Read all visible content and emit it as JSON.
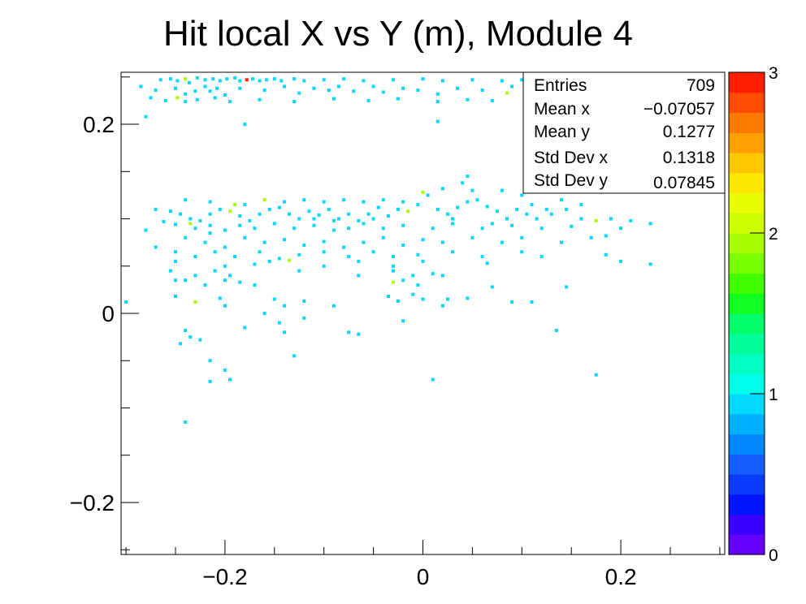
{
  "chart_data": {
    "type": "heatmap",
    "title": "Hit local X vs Y (m), Module 4",
    "xlabel": "",
    "ylabel": "",
    "xlim": [
      -0.305,
      0.305
    ],
    "ylim": [
      -0.255,
      0.255
    ],
    "zlim": [
      0,
      3
    ],
    "x_ticks": [
      -0.2,
      0,
      0.2
    ],
    "x_tick_labels": [
      "−0.2",
      "0",
      "0.2"
    ],
    "y_ticks": [
      -0.2,
      0,
      0.2
    ],
    "y_tick_labels": [
      "−0.2",
      "0",
      "0.2"
    ],
    "z_ticks": [
      0,
      1,
      2,
      3
    ],
    "z_tick_labels": [
      "0",
      "1",
      "2",
      "3"
    ],
    "palette": [
      "#6400ff",
      "#3a00ff",
      "#0014ff",
      "#0a3cff",
      "#1460ff",
      "#0088ff",
      "#00b0ff",
      "#00d8ff",
      "#00ffe8",
      "#00ffc0",
      "#00ff9a",
      "#00ff68",
      "#10ff20",
      "#40ff00",
      "#78ff00",
      "#a8ff00",
      "#ccff00",
      "#e8ff00",
      "#ffe800",
      "#ffc800",
      "#ffa000",
      "#ff7a00",
      "#ff4c00",
      "#ff1e00"
    ],
    "points": [
      [
        -0.265,
        0.247,
        1
      ],
      [
        -0.255,
        0.248,
        1
      ],
      [
        -0.248,
        0.246,
        1
      ],
      [
        -0.24,
        0.248,
        2
      ],
      [
        -0.236,
        0.244,
        1
      ],
      [
        -0.228,
        0.249,
        1
      ],
      [
        -0.22,
        0.247,
        1
      ],
      [
        -0.212,
        0.248,
        1
      ],
      [
        -0.205,
        0.246,
        1
      ],
      [
        -0.198,
        0.248,
        1
      ],
      [
        -0.19,
        0.249,
        1
      ],
      [
        -0.185,
        0.246,
        1
      ],
      [
        -0.178,
        0.247,
        3
      ],
      [
        -0.172,
        0.248,
        1
      ],
      [
        -0.165,
        0.246,
        1
      ],
      [
        -0.158,
        0.247,
        1
      ],
      [
        -0.15,
        0.248,
        1
      ],
      [
        -0.143,
        0.246,
        1
      ],
      [
        -0.13,
        0.248,
        1
      ],
      [
        -0.12,
        0.246,
        1
      ],
      [
        -0.1,
        0.247,
        1
      ],
      [
        -0.08,
        0.248,
        1
      ],
      [
        -0.06,
        0.246,
        1
      ],
      [
        -0.03,
        0.247,
        1
      ],
      [
        0.0,
        0.248,
        1
      ],
      [
        0.02,
        0.246,
        1
      ],
      [
        0.05,
        0.247,
        1
      ],
      [
        0.08,
        0.246,
        1
      ],
      [
        0.1,
        0.247,
        1
      ],
      [
        -0.285,
        0.24,
        1
      ],
      [
        -0.27,
        0.236,
        1
      ],
      [
        -0.25,
        0.238,
        1
      ],
      [
        -0.24,
        0.232,
        1
      ],
      [
        -0.23,
        0.235,
        1
      ],
      [
        -0.22,
        0.24,
        1
      ],
      [
        -0.215,
        0.235,
        1
      ],
      [
        -0.208,
        0.238,
        1
      ],
      [
        -0.2,
        0.231,
        1
      ],
      [
        -0.185,
        0.238,
        1
      ],
      [
        -0.16,
        0.236,
        1
      ],
      [
        -0.14,
        0.24,
        1
      ],
      [
        -0.125,
        0.233,
        1
      ],
      [
        -0.11,
        0.238,
        1
      ],
      [
        -0.095,
        0.236,
        1
      ],
      [
        -0.085,
        0.24,
        1
      ],
      [
        -0.07,
        0.235,
        1
      ],
      [
        -0.05,
        0.24,
        1
      ],
      [
        -0.04,
        0.234,
        1
      ],
      [
        -0.02,
        0.238,
        1
      ],
      [
        -0.005,
        0.236,
        1
      ],
      [
        0.015,
        0.232,
        1
      ],
      [
        0.035,
        0.238,
        1
      ],
      [
        0.06,
        0.236,
        1
      ],
      [
        0.085,
        0.233,
        2
      ],
      [
        0.09,
        0.24,
        1
      ],
      [
        -0.275,
        0.228,
        1
      ],
      [
        -0.26,
        0.225,
        1
      ],
      [
        -0.248,
        0.228,
        2
      ],
      [
        -0.24,
        0.224,
        1
      ],
      [
        -0.228,
        0.226,
        1
      ],
      [
        -0.21,
        0.228,
        1
      ],
      [
        -0.195,
        0.224,
        1
      ],
      [
        -0.165,
        0.226,
        1
      ],
      [
        -0.13,
        0.224,
        1
      ],
      [
        -0.09,
        0.227,
        1
      ],
      [
        -0.055,
        0.225,
        1
      ],
      [
        -0.025,
        0.227,
        1
      ],
      [
        0.015,
        0.224,
        1
      ],
      [
        0.045,
        0.226,
        1
      ],
      [
        0.07,
        0.225,
        1
      ],
      [
        -0.28,
        0.208,
        1
      ],
      [
        -0.18,
        0.2,
        1
      ],
      [
        0.015,
        0.203,
        1
      ],
      [
        -0.27,
        0.11,
        1
      ],
      [
        -0.255,
        0.108,
        1
      ],
      [
        -0.245,
        0.105,
        1
      ],
      [
        -0.235,
        0.1,
        1
      ],
      [
        -0.225,
        0.098,
        1
      ],
      [
        -0.215,
        0.105,
        1
      ],
      [
        -0.205,
        0.11,
        1
      ],
      [
        -0.195,
        0.108,
        2
      ],
      [
        -0.185,
        0.103,
        1
      ],
      [
        -0.175,
        0.098,
        1
      ],
      [
        -0.165,
        0.105,
        1
      ],
      [
        -0.155,
        0.11,
        1
      ],
      [
        -0.145,
        0.112,
        1
      ],
      [
        -0.135,
        0.105,
        1
      ],
      [
        -0.125,
        0.1,
        1
      ],
      [
        -0.115,
        0.108,
        1
      ],
      [
        -0.105,
        0.104,
        1
      ],
      [
        -0.095,
        0.11,
        1
      ],
      [
        -0.085,
        0.1,
        1
      ],
      [
        -0.075,
        0.105,
        1
      ],
      [
        -0.065,
        0.098,
        1
      ],
      [
        -0.055,
        0.105,
        1
      ],
      [
        -0.045,
        0.112,
        1
      ],
      [
        -0.035,
        0.103,
        1
      ],
      [
        -0.025,
        0.11,
        1
      ],
      [
        -0.015,
        0.108,
        2
      ],
      [
        -0.005,
        0.115,
        1
      ],
      [
        0.005,
        0.125,
        1
      ],
      [
        0.015,
        0.11,
        1
      ],
      [
        0.025,
        0.105,
        1
      ],
      [
        0.035,
        0.112,
        1
      ],
      [
        0.045,
        0.118,
        1
      ],
      [
        0.055,
        0.12,
        1
      ],
      [
        0.065,
        0.113,
        1
      ],
      [
        0.075,
        0.108,
        1
      ],
      [
        0.085,
        0.1,
        1
      ],
      [
        0.095,
        0.11,
        1
      ],
      [
        0.105,
        0.105,
        1
      ],
      [
        0.115,
        0.1,
        1
      ],
      [
        0.13,
        0.105,
        1
      ],
      [
        0.145,
        0.11,
        1
      ],
      [
        0.16,
        0.1,
        1
      ],
      [
        0.175,
        0.098,
        2
      ],
      [
        0.19,
        0.1,
        1
      ],
      [
        0.21,
        0.098,
        1
      ],
      [
        0.23,
        0.095,
        1
      ],
      [
        -0.24,
        0.12,
        1
      ],
      [
        -0.215,
        0.118,
        1
      ],
      [
        -0.18,
        0.115,
        1
      ],
      [
        -0.16,
        0.12,
        2
      ],
      [
        -0.14,
        0.118,
        1
      ],
      [
        -0.12,
        0.12,
        1
      ],
      [
        -0.1,
        0.118,
        1
      ],
      [
        -0.08,
        0.12,
        1
      ],
      [
        -0.06,
        0.118,
        1
      ],
      [
        -0.04,
        0.12,
        1
      ],
      [
        -0.02,
        0.118,
        1
      ],
      [
        0.0,
        0.128,
        2
      ],
      [
        0.02,
        0.132,
        1
      ],
      [
        0.04,
        0.138,
        1
      ],
      [
        0.05,
        0.13,
        1
      ],
      [
        0.08,
        0.13,
        1
      ],
      [
        0.1,
        0.125,
        1
      ],
      [
        0.045,
        0.145,
        1
      ],
      [
        -0.262,
        0.097,
        1
      ],
      [
        -0.25,
        0.094,
        1
      ],
      [
        -0.23,
        0.09,
        1
      ],
      [
        -0.215,
        0.093,
        1
      ],
      [
        -0.2,
        0.088,
        1
      ],
      [
        -0.185,
        0.093,
        1
      ],
      [
        -0.17,
        0.09,
        1
      ],
      [
        -0.15,
        0.095,
        1
      ],
      [
        -0.13,
        0.09,
        1
      ],
      [
        -0.11,
        0.093,
        1
      ],
      [
        -0.09,
        0.088,
        1
      ],
      [
        -0.075,
        0.09,
        1
      ],
      [
        -0.06,
        0.095,
        1
      ],
      [
        -0.04,
        0.09,
        1
      ],
      [
        -0.02,
        0.093,
        1
      ],
      [
        0.01,
        0.09,
        1
      ],
      [
        0.03,
        0.095,
        1
      ],
      [
        0.06,
        0.09,
        1
      ],
      [
        0.09,
        0.093,
        1
      ],
      [
        0.12,
        0.09,
        1
      ],
      [
        0.15,
        0.092,
        1
      ],
      [
        0.2,
        0.09,
        1
      ],
      [
        -0.28,
        0.088,
        1
      ],
      [
        -0.24,
        0.08,
        1
      ],
      [
        -0.22,
        0.075,
        1
      ],
      [
        -0.2,
        0.07,
        1
      ],
      [
        -0.18,
        0.08,
        1
      ],
      [
        -0.16,
        0.075,
        1
      ],
      [
        -0.14,
        0.078,
        1
      ],
      [
        -0.12,
        0.072,
        1
      ],
      [
        -0.1,
        0.076,
        1
      ],
      [
        -0.08,
        0.07,
        1
      ],
      [
        -0.06,
        0.075,
        1
      ],
      [
        -0.04,
        0.08,
        1
      ],
      [
        -0.02,
        0.072,
        1
      ],
      [
        0.0,
        0.078,
        1
      ],
      [
        0.02,
        0.075,
        1
      ],
      [
        0.05,
        0.08,
        1
      ],
      [
        0.08,
        0.075,
        1
      ],
      [
        0.1,
        0.08,
        1
      ],
      [
        0.14,
        0.075,
        1
      ],
      [
        0.17,
        0.08,
        1
      ],
      [
        0.185,
        0.082,
        1
      ],
      [
        -0.27,
        0.07,
        1
      ],
      [
        -0.25,
        0.065,
        1
      ],
      [
        -0.23,
        0.06,
        1
      ],
      [
        -0.21,
        0.065,
        1
      ],
      [
        -0.19,
        0.06,
        1
      ],
      [
        -0.165,
        0.065,
        1
      ],
      [
        -0.145,
        0.058,
        1
      ],
      [
        -0.125,
        0.062,
        1
      ],
      [
        -0.1,
        0.065,
        1
      ],
      [
        -0.075,
        0.06,
        1
      ],
      [
        -0.05,
        0.065,
        1
      ],
      [
        -0.03,
        0.06,
        1
      ],
      [
        -0.005,
        0.062,
        1
      ],
      [
        0.03,
        0.065,
        1
      ],
      [
        0.06,
        0.06,
        1
      ],
      [
        0.1,
        0.065,
        1
      ],
      [
        0.12,
        0.06,
        1
      ],
      [
        0.185,
        0.062,
        1
      ],
      [
        -0.25,
        0.055,
        1
      ],
      [
        -0.2,
        0.05,
        1
      ],
      [
        -0.155,
        0.055,
        1
      ],
      [
        -0.1,
        0.05,
        1
      ],
      [
        -0.065,
        0.055,
        1
      ],
      [
        -0.03,
        0.05,
        1
      ],
      [
        0.0,
        0.055,
        1
      ],
      [
        -0.17,
        0.052,
        1
      ],
      [
        -0.135,
        0.056,
        2
      ],
      [
        0.2,
        0.055,
        1
      ],
      [
        0.23,
        0.052,
        1
      ],
      [
        0.065,
        0.053,
        1
      ],
      [
        -0.255,
        0.045,
        1
      ],
      [
        -0.23,
        0.04,
        1
      ],
      [
        -0.21,
        0.045,
        1
      ],
      [
        -0.195,
        0.04,
        1
      ],
      [
        -0.125,
        0.045,
        1
      ],
      [
        -0.065,
        0.04,
        1
      ],
      [
        -0.03,
        0.045,
        1
      ],
      [
        -0.01,
        0.04,
        1
      ],
      [
        0.01,
        0.042,
        1
      ],
      [
        0.02,
        0.04,
        1
      ],
      [
        -0.25,
        0.035,
        1
      ],
      [
        -0.24,
        0.035,
        1
      ],
      [
        -0.22,
        0.03,
        1
      ],
      [
        -0.2,
        0.035,
        1
      ],
      [
        -0.185,
        0.033,
        1
      ],
      [
        -0.03,
        0.033,
        2
      ],
      [
        -0.02,
        0.035,
        1
      ],
      [
        -0.005,
        0.03,
        1
      ],
      [
        0.07,
        0.028,
        1
      ],
      [
        0.145,
        0.028,
        1
      ],
      [
        -0.17,
        0.03,
        1
      ],
      [
        -0.25,
        0.018,
        1
      ],
      [
        -0.23,
        0.012,
        2
      ],
      [
        -0.205,
        0.016,
        1
      ],
      [
        -0.15,
        0.015,
        1
      ],
      [
        -0.12,
        0.013,
        1
      ],
      [
        -0.035,
        0.018,
        1
      ],
      [
        -0.025,
        0.013,
        1
      ],
      [
        0.0,
        0.015,
        1
      ],
      [
        0.025,
        0.015,
        1
      ],
      [
        0.045,
        0.016,
        1
      ],
      [
        0.09,
        0.012,
        1
      ],
      [
        -0.01,
        0.02,
        1
      ],
      [
        -0.3,
        0.012,
        1
      ],
      [
        -0.14,
        0.008,
        1
      ],
      [
        -0.09,
        0.008,
        1
      ],
      [
        0.02,
        0.008,
        1
      ],
      [
        0.11,
        0.012,
        1
      ],
      [
        -0.2,
        0.008,
        1
      ],
      [
        -0.16,
        0.0,
        1
      ],
      [
        -0.12,
        -0.005,
        1
      ],
      [
        -0.02,
        -0.008,
        1
      ],
      [
        -0.18,
        -0.015,
        1
      ],
      [
        -0.145,
        -0.01,
        1
      ],
      [
        -0.24,
        -0.018,
        1
      ],
      [
        -0.235,
        -0.025,
        1
      ],
      [
        -0.075,
        -0.02,
        1
      ],
      [
        -0.065,
        -0.022,
        1
      ],
      [
        -0.14,
        -0.02,
        1
      ],
      [
        0.135,
        -0.018,
        1
      ],
      [
        -0.225,
        -0.028,
        1
      ],
      [
        -0.245,
        -0.032,
        1
      ],
      [
        -0.13,
        -0.045,
        1
      ],
      [
        -0.215,
        -0.05,
        1
      ],
      [
        -0.2,
        -0.06,
        1
      ],
      [
        0.175,
        -0.065,
        1
      ],
      [
        -0.215,
        -0.072,
        1
      ],
      [
        -0.195,
        -0.07,
        1
      ],
      [
        0.01,
        -0.07,
        1
      ],
      [
        -0.24,
        -0.115,
        1
      ],
      [
        -0.235,
        0.095,
        2
      ],
      [
        -0.215,
        0.085,
        1
      ],
      [
        -0.19,
        0.115,
        2
      ],
      [
        -0.11,
        0.1,
        1
      ],
      [
        -0.09,
        0.098,
        1
      ],
      [
        -0.05,
        0.1,
        1
      ],
      [
        0.03,
        0.1,
        1
      ],
      [
        0.07,
        0.095,
        1
      ],
      [
        0.11,
        0.115,
        1
      ],
      [
        0.125,
        0.11,
        1
      ],
      [
        0.14,
        0.12,
        1
      ],
      [
        0.16,
        0.115,
        1
      ]
    ]
  },
  "stats_box": {
    "rows": [
      {
        "label": "Entries",
        "value": "709"
      },
      {
        "label": "Mean x",
        "value": "−0.07057"
      },
      {
        "label": "Mean y",
        "value": "0.1277"
      },
      {
        "label": "Std Dev x",
        "value": "0.1318"
      },
      {
        "label": "Std Dev y",
        "value": "0.07845"
      }
    ]
  },
  "colors": {
    "frame": "#000000",
    "background": "#ffffff"
  }
}
